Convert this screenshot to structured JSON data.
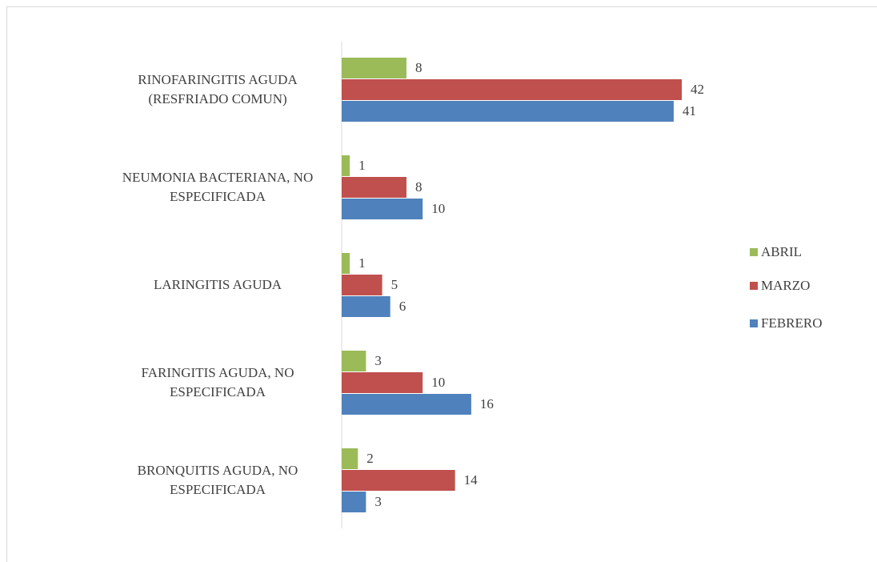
{
  "chart_data": {
    "type": "bar",
    "orientation": "horizontal",
    "categories": [
      "RINOFARINGITIS AGUDA (RESFRIADO COMUN)",
      "NEUMONIA BACTERIANA, NO ESPECIFICADA",
      "LARINGITIS AGUDA",
      "FARINGITIS AGUDA, NO ESPECIFICADA",
      "BRONQUITIS AGUDA, NO ESPECIFICADA"
    ],
    "series": [
      {
        "name": "ABRIL",
        "color": "#9bbb59",
        "values": [
          8,
          1,
          1,
          3,
          2
        ]
      },
      {
        "name": "MARZO",
        "color": "#c0504d",
        "values": [
          42,
          8,
          5,
          10,
          14
        ]
      },
      {
        "name": "FEBRERO",
        "color": "#4f81bd",
        "values": [
          41,
          10,
          6,
          16,
          3
        ]
      }
    ],
    "legend": "right"
  }
}
